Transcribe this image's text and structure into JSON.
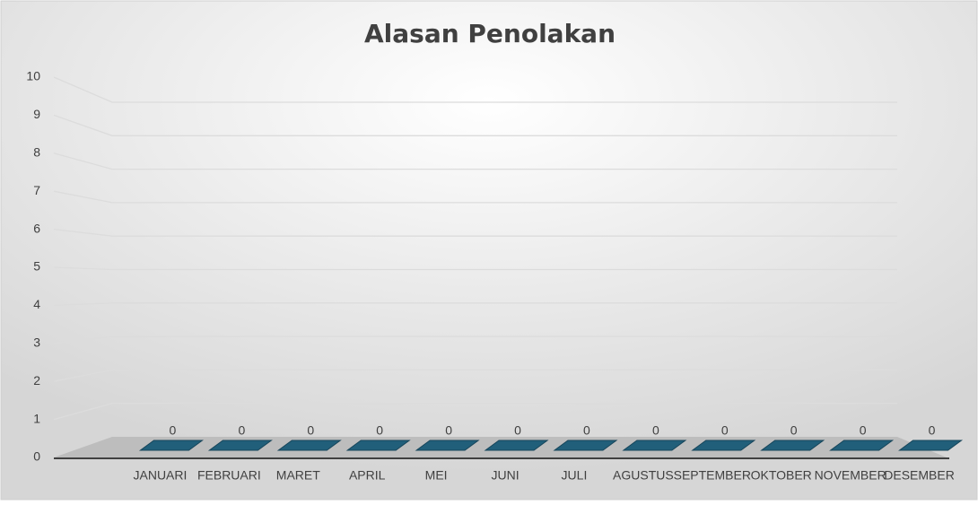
{
  "chart_data": {
    "type": "bar",
    "title": "Alasan Penolakan",
    "categories": [
      "JANUARI",
      "FEBRUARI",
      "MARET",
      "APRIL",
      "MEI",
      "JUNI",
      "JULI",
      "AGUSTUS",
      "SEPTEMBER",
      "OKTOBER",
      "NOVEMBER",
      "DESEMBER"
    ],
    "values": [
      0,
      0,
      0,
      0,
      0,
      0,
      0,
      0,
      0,
      0,
      0,
      0
    ],
    "color": "#215f7a",
    "ylim": [
      0,
      10
    ],
    "yticks": [
      0,
      1,
      2,
      3,
      4,
      5,
      6,
      7,
      8,
      9,
      10
    ],
    "grid": true
  }
}
